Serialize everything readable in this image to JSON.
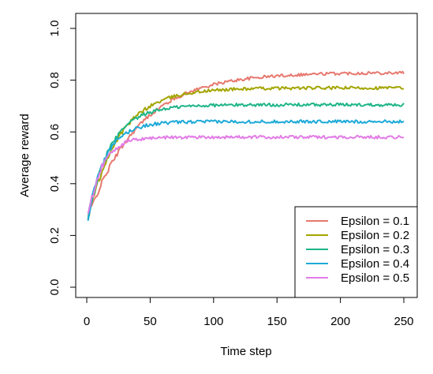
{
  "chart_data": {
    "type": "line",
    "xlabel": "Time step",
    "ylabel": "Average reward",
    "xlim": [
      1,
      250
    ],
    "ylim": [
      0,
      1
    ],
    "x_ticks": [
      0,
      50,
      100,
      150,
      200,
      250
    ],
    "y_ticks": [
      0.0,
      0.2,
      0.4,
      0.6,
      0.8,
      1.0
    ],
    "x_tick_labels": [
      "0",
      "50",
      "100",
      "150",
      "200",
      "250"
    ],
    "y_tick_labels": [
      "0.0",
      "0.2",
      "0.4",
      "0.6",
      "0.8",
      "1.0"
    ],
    "x_step": 1,
    "x_start": 1,
    "x_end": 250,
    "legend_position": "bottom-right",
    "grid": false,
    "series": [
      {
        "name": "Epsilon = 0.1",
        "color": "#E7796F",
        "start": 0.27,
        "plateau": 0.83,
        "rate": 0.025,
        "noise": 0.006
      },
      {
        "name": "Epsilon = 0.2",
        "color": "#A3A500",
        "start": 0.27,
        "plateau": 0.77,
        "rate": 0.04,
        "noise": 0.006
      },
      {
        "name": "Epsilon = 0.3",
        "color": "#1FB588",
        "start": 0.27,
        "plateau": 0.705,
        "rate": 0.055,
        "noise": 0.006
      },
      {
        "name": "Epsilon = 0.4",
        "color": "#1EAAD8",
        "start": 0.27,
        "plateau": 0.64,
        "rate": 0.07,
        "noise": 0.006
      },
      {
        "name": "Epsilon = 0.5",
        "color": "#E27CE6",
        "start": 0.27,
        "plateau": 0.58,
        "rate": 0.09,
        "noise": 0.006
      }
    ]
  }
}
